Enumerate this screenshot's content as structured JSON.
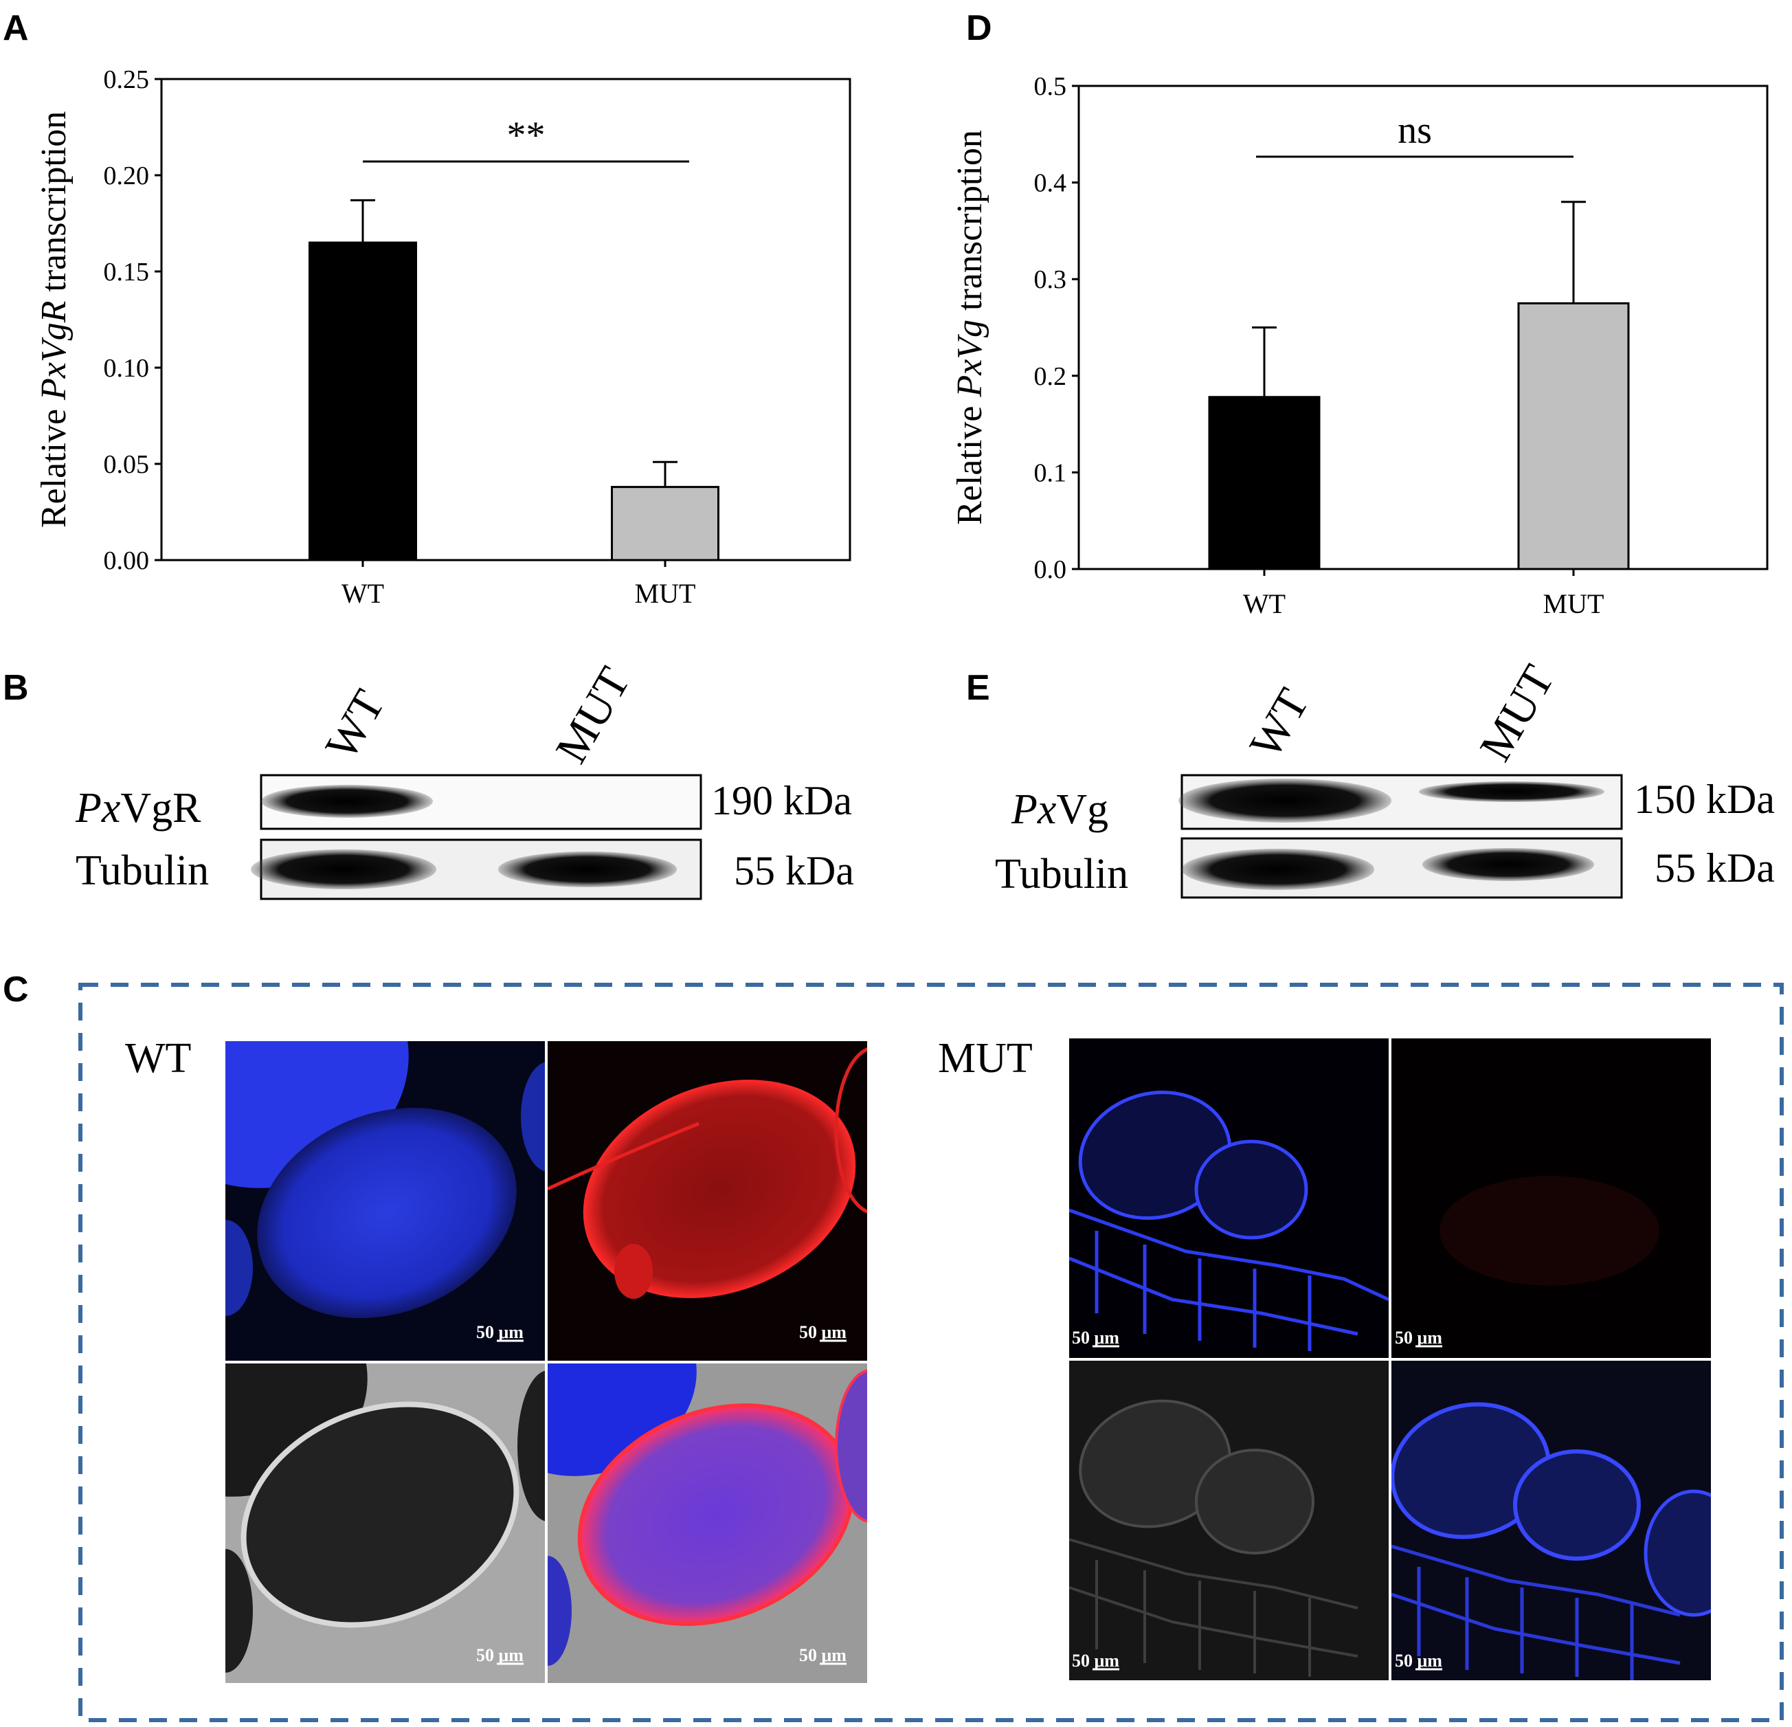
{
  "figure": {
    "panels": {
      "A": "A",
      "B": "B",
      "C": "C",
      "D": "D",
      "E": "E"
    }
  },
  "chart_data": [
    {
      "panel": "A",
      "type": "bar",
      "categories": [
        "WT",
        "MUT"
      ],
      "values": [
        0.165,
        0.038
      ],
      "errors": [
        0.022,
        0.013
      ],
      "colors": [
        "#000000",
        "#c0c0c0"
      ],
      "ylabel_prefix": "Relative ",
      "ylabel_gene": "PxVgR",
      "ylabel_suffix": " transcription",
      "ylim": [
        0,
        0.25
      ],
      "yticks": [
        "0.00",
        "0.05",
        "0.10",
        "0.15",
        "0.20",
        "0.25"
      ],
      "significance": "**",
      "grid": false
    },
    {
      "panel": "D",
      "type": "bar",
      "categories": [
        "WT",
        "MUT"
      ],
      "values": [
        0.178,
        0.275
      ],
      "errors": [
        0.072,
        0.105
      ],
      "colors": [
        "#000000",
        "#c0c0c0"
      ],
      "ylabel_prefix": "Relative ",
      "ylabel_gene": "PxVg",
      "ylabel_suffix": " transcription",
      "ylim": [
        0,
        0.5
      ],
      "yticks": [
        "0.0",
        "0.1",
        "0.2",
        "0.3",
        "0.4",
        "0.5"
      ],
      "significance": "ns",
      "grid": false
    }
  ],
  "blots": {
    "B": {
      "lanes": [
        "WT",
        "MUT"
      ],
      "target_italic": "Px",
      "target_rest": "VgR",
      "target_size": "190 kDa",
      "control": "Tubulin",
      "control_size": "55 kDa"
    },
    "E": {
      "lanes": [
        "WT",
        "MUT"
      ],
      "target_italic": "Px",
      "target_rest": "Vg",
      "target_size": "150 kDa",
      "control": "Tubulin",
      "control_size": "55 kDa"
    }
  },
  "microscopy": {
    "groups": [
      "WT",
      "MUT"
    ],
    "scale_bar": "50 μm",
    "border_color": "#3a6aa0"
  }
}
